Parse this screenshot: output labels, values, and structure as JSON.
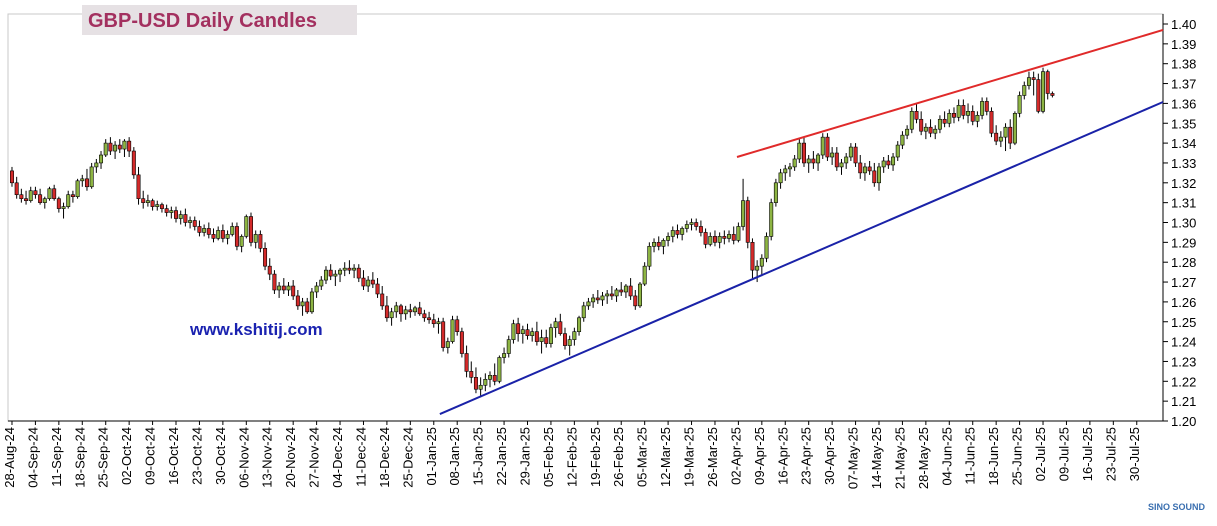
{
  "chart_data": {
    "type": "candlestick",
    "title": "GBP-USD Daily Candles",
    "annotation": "www.kshitij.com",
    "watermark": "SINO SOUND",
    "up_color": "#8db443",
    "down_color": "#d42a2a",
    "categories": [
      "28-Aug-24",
      "04-Sep-24",
      "11-Sep-24",
      "18-Sep-24",
      "25-Sep-24",
      "02-Oct-24",
      "09-Oct-24",
      "16-Oct-24",
      "23-Oct-24",
      "30-Oct-24",
      "06-Nov-24",
      "13-Nov-24",
      "20-Nov-24",
      "27-Nov-24",
      "04-Dec-24",
      "11-Dec-24",
      "18-Dec-24",
      "25-Dec-24",
      "01-Jan-25",
      "08-Jan-25",
      "15-Jan-25",
      "22-Jan-25",
      "29-Jan-25",
      "05-Feb-25",
      "12-Feb-25",
      "19-Feb-25",
      "26-Feb-25",
      "05-Mar-25",
      "12-Mar-25",
      "19-Mar-25",
      "26-Mar-25",
      "02-Apr-25",
      "09-Apr-25",
      "16-Apr-25",
      "23-Apr-25",
      "30-Apr-25",
      "07-May-25",
      "14-May-25",
      "21-May-25",
      "28-May-25",
      "04-Jun-25",
      "11-Jun-25",
      "18-Jun-25",
      "25-Jun-25",
      "02-Jul-25",
      "09-Jul-25",
      "16-Jul-25",
      "23-Jul-25",
      "30-Jul-25"
    ],
    "ohlc": [
      [
        1.326,
        1.328,
        1.318,
        1.32
      ],
      [
        1.32,
        1.323,
        1.312,
        1.314
      ],
      [
        1.314,
        1.317,
        1.31,
        1.312
      ],
      [
        1.312,
        1.316,
        1.309,
        1.311
      ],
      [
        1.311,
        1.318,
        1.31,
        1.316
      ],
      [
        1.316,
        1.318,
        1.312,
        1.314
      ],
      [
        1.314,
        1.317,
        1.309,
        1.31
      ],
      [
        1.31,
        1.313,
        1.307,
        1.312
      ],
      [
        1.312,
        1.318,
        1.311,
        1.317
      ],
      [
        1.317,
        1.319,
        1.311,
        1.312
      ],
      [
        1.312,
        1.313,
        1.305,
        1.307
      ],
      [
        1.307,
        1.31,
        1.302,
        1.308
      ],
      [
        1.308,
        1.316,
        1.307,
        1.314
      ],
      [
        1.314,
        1.316,
        1.31,
        1.313
      ],
      [
        1.313,
        1.322,
        1.312,
        1.321
      ],
      [
        1.321,
        1.324,
        1.318,
        1.322
      ],
      [
        1.322,
        1.327,
        1.316,
        1.318
      ],
      [
        1.318,
        1.33,
        1.317,
        1.328
      ],
      [
        1.328,
        1.332,
        1.325,
        1.33
      ],
      [
        1.33,
        1.336,
        1.327,
        1.334
      ],
      [
        1.334,
        1.342,
        1.333,
        1.34
      ],
      [
        1.34,
        1.343,
        1.334,
        1.336
      ],
      [
        1.336,
        1.341,
        1.332,
        1.339
      ],
      [
        1.339,
        1.342,
        1.335,
        1.337
      ],
      [
        1.337,
        1.342,
        1.333,
        1.341
      ],
      [
        1.341,
        1.343,
        1.333,
        1.336
      ],
      [
        1.336,
        1.338,
        1.322,
        1.324
      ],
      [
        1.324,
        1.328,
        1.309,
        1.312
      ],
      [
        1.312,
        1.316,
        1.307,
        1.31
      ],
      [
        1.31,
        1.314,
        1.308,
        1.311
      ],
      [
        1.311,
        1.312,
        1.306,
        1.308
      ],
      [
        1.308,
        1.311,
        1.306,
        1.309
      ],
      [
        1.309,
        1.31,
        1.305,
        1.307
      ],
      [
        1.307,
        1.309,
        1.303,
        1.305
      ],
      [
        1.305,
        1.308,
        1.302,
        1.306
      ],
      [
        1.306,
        1.308,
        1.3,
        1.302
      ],
      [
        1.302,
        1.306,
        1.299,
        1.304
      ],
      [
        1.304,
        1.307,
        1.298,
        1.3
      ],
      [
        1.3,
        1.303,
        1.297,
        1.301
      ],
      [
        1.301,
        1.303,
        1.296,
        1.298
      ],
      [
        1.298,
        1.301,
        1.293,
        1.295
      ],
      [
        1.295,
        1.299,
        1.293,
        1.297
      ],
      [
        1.297,
        1.3,
        1.292,
        1.294
      ],
      [
        1.294,
        1.297,
        1.29,
        1.292
      ],
      [
        1.292,
        1.298,
        1.291,
        1.296
      ],
      [
        1.296,
        1.299,
        1.29,
        1.292
      ],
      [
        1.292,
        1.296,
        1.289,
        1.294
      ],
      [
        1.294,
        1.3,
        1.293,
        1.298
      ],
      [
        1.298,
        1.3,
        1.286,
        1.288
      ],
      [
        1.288,
        1.294,
        1.285,
        1.293
      ],
      [
        1.293,
        1.304,
        1.292,
        1.303
      ],
      [
        1.303,
        1.305,
        1.288,
        1.29
      ],
      [
        1.29,
        1.296,
        1.287,
        1.294
      ],
      [
        1.294,
        1.296,
        1.285,
        1.287
      ],
      [
        1.287,
        1.29,
        1.276,
        1.278
      ],
      [
        1.278,
        1.282,
        1.271,
        1.274
      ],
      [
        1.274,
        1.276,
        1.264,
        1.266
      ],
      [
        1.266,
        1.27,
        1.262,
        1.268
      ],
      [
        1.268,
        1.272,
        1.264,
        1.266
      ],
      [
        1.266,
        1.27,
        1.263,
        1.268
      ],
      [
        1.268,
        1.271,
        1.261,
        1.263
      ],
      [
        1.263,
        1.266,
        1.256,
        1.258
      ],
      [
        1.258,
        1.262,
        1.253,
        1.26
      ],
      [
        1.26,
        1.262,
        1.254,
        1.255
      ],
      [
        1.255,
        1.267,
        1.254,
        1.265
      ],
      [
        1.265,
        1.27,
        1.262,
        1.268
      ],
      [
        1.268,
        1.273,
        1.266,
        1.271
      ],
      [
        1.271,
        1.278,
        1.269,
        1.276
      ],
      [
        1.276,
        1.279,
        1.271,
        1.273
      ],
      [
        1.273,
        1.276,
        1.268,
        1.274
      ],
      [
        1.274,
        1.277,
        1.27,
        1.276
      ],
      [
        1.276,
        1.28,
        1.273,
        1.277
      ],
      [
        1.277,
        1.281,
        1.274,
        1.276
      ],
      [
        1.276,
        1.279,
        1.272,
        1.277
      ],
      [
        1.277,
        1.279,
        1.27,
        1.272
      ],
      [
        1.272,
        1.276,
        1.266,
        1.268
      ],
      [
        1.268,
        1.273,
        1.265,
        1.271
      ],
      [
        1.271,
        1.275,
        1.267,
        1.269
      ],
      [
        1.269,
        1.272,
        1.262,
        1.264
      ],
      [
        1.264,
        1.268,
        1.256,
        1.258
      ],
      [
        1.258,
        1.263,
        1.25,
        1.252
      ],
      [
        1.252,
        1.257,
        1.248,
        1.255
      ],
      [
        1.255,
        1.26,
        1.252,
        1.258
      ],
      [
        1.258,
        1.259,
        1.25,
        1.254
      ],
      [
        1.254,
        1.258,
        1.251,
        1.256
      ],
      [
        1.256,
        1.259,
        1.252,
        1.255
      ],
      [
        1.255,
        1.258,
        1.253,
        1.257
      ],
      [
        1.257,
        1.26,
        1.253,
        1.254
      ],
      [
        1.254,
        1.256,
        1.25,
        1.252
      ],
      [
        1.252,
        1.255,
        1.249,
        1.251
      ],
      [
        1.251,
        1.254,
        1.247,
        1.249
      ],
      [
        1.249,
        1.252,
        1.244,
        1.25
      ],
      [
        1.25,
        1.252,
        1.235,
        1.237
      ],
      [
        1.237,
        1.242,
        1.234,
        1.24
      ],
      [
        1.24,
        1.253,
        1.239,
        1.251
      ],
      [
        1.251,
        1.253,
        1.243,
        1.245
      ],
      [
        1.245,
        1.247,
        1.232,
        1.234
      ],
      [
        1.234,
        1.238,
        1.222,
        1.225
      ],
      [
        1.225,
        1.23,
        1.219,
        1.222
      ],
      [
        1.222,
        1.227,
        1.214,
        1.216
      ],
      [
        1.216,
        1.222,
        1.212,
        1.218
      ],
      [
        1.218,
        1.224,
        1.215,
        1.221
      ],
      [
        1.221,
        1.225,
        1.217,
        1.223
      ],
      [
        1.223,
        1.229,
        1.218,
        1.22
      ],
      [
        1.22,
        1.233,
        1.219,
        1.232
      ],
      [
        1.232,
        1.237,
        1.229,
        1.234
      ],
      [
        1.234,
        1.243,
        1.232,
        1.241
      ],
      [
        1.241,
        1.251,
        1.239,
        1.249
      ],
      [
        1.249,
        1.252,
        1.24,
        1.244
      ],
      [
        1.244,
        1.248,
        1.239,
        1.246
      ],
      [
        1.246,
        1.249,
        1.241,
        1.243
      ],
      [
        1.243,
        1.247,
        1.24,
        1.245
      ],
      [
        1.245,
        1.25,
        1.238,
        1.24
      ],
      [
        1.24,
        1.246,
        1.234,
        1.242
      ],
      [
        1.242,
        1.246,
        1.237,
        1.239
      ],
      [
        1.239,
        1.249,
        1.237,
        1.247
      ],
      [
        1.247,
        1.252,
        1.242,
        1.25
      ],
      [
        1.25,
        1.254,
        1.243,
        1.244
      ],
      [
        1.244,
        1.247,
        1.236,
        1.238
      ],
      [
        1.238,
        1.243,
        1.233,
        1.241
      ],
      [
        1.241,
        1.247,
        1.238,
        1.245
      ],
      [
        1.245,
        1.253,
        1.243,
        1.252
      ],
      [
        1.252,
        1.26,
        1.25,
        1.258
      ],
      [
        1.258,
        1.262,
        1.256,
        1.26
      ],
      [
        1.26,
        1.264,
        1.257,
        1.262
      ],
      [
        1.262,
        1.266,
        1.259,
        1.261
      ],
      [
        1.261,
        1.265,
        1.258,
        1.263
      ],
      [
        1.263,
        1.266,
        1.259,
        1.264
      ],
      [
        1.264,
        1.268,
        1.261,
        1.263
      ],
      [
        1.263,
        1.267,
        1.26,
        1.266
      ],
      [
        1.266,
        1.27,
        1.263,
        1.265
      ],
      [
        1.265,
        1.269,
        1.262,
        1.268
      ],
      [
        1.268,
        1.272,
        1.261,
        1.263
      ],
      [
        1.263,
        1.266,
        1.256,
        1.258
      ],
      [
        1.258,
        1.27,
        1.257,
        1.269
      ],
      [
        1.269,
        1.28,
        1.268,
        1.278
      ],
      [
        1.278,
        1.29,
        1.276,
        1.288
      ],
      [
        1.288,
        1.292,
        1.285,
        1.29
      ],
      [
        1.29,
        1.293,
        1.286,
        1.288
      ],
      [
        1.288,
        1.292,
        1.284,
        1.291
      ],
      [
        1.291,
        1.295,
        1.288,
        1.293
      ],
      [
        1.293,
        1.298,
        1.29,
        1.296
      ],
      [
        1.296,
        1.299,
        1.292,
        1.294
      ],
      [
        1.294,
        1.298,
        1.291,
        1.297
      ],
      [
        1.297,
        1.301,
        1.295,
        1.299
      ],
      [
        1.299,
        1.302,
        1.296,
        1.3
      ],
      [
        1.3,
        1.302,
        1.296,
        1.298
      ],
      [
        1.298,
        1.301,
        1.293,
        1.295
      ],
      [
        1.295,
        1.297,
        1.287,
        1.289
      ],
      [
        1.289,
        1.295,
        1.288,
        1.293
      ],
      [
        1.293,
        1.296,
        1.288,
        1.29
      ],
      [
        1.29,
        1.295,
        1.287,
        1.293
      ],
      [
        1.293,
        1.296,
        1.289,
        1.292
      ],
      [
        1.292,
        1.296,
        1.29,
        1.294
      ],
      [
        1.294,
        1.298,
        1.289,
        1.291
      ],
      [
        1.291,
        1.3,
        1.29,
        1.298
      ],
      [
        1.298,
        1.322,
        1.296,
        1.311
      ],
      [
        1.311,
        1.313,
        1.287,
        1.29
      ],
      [
        1.29,
        1.292,
        1.272,
        1.276
      ],
      [
        1.276,
        1.281,
        1.27,
        1.278
      ],
      [
        1.278,
        1.284,
        1.273,
        1.282
      ],
      [
        1.282,
        1.295,
        1.28,
        1.293
      ],
      [
        1.293,
        1.312,
        1.291,
        1.31
      ],
      [
        1.31,
        1.322,
        1.308,
        1.32
      ],
      [
        1.32,
        1.327,
        1.317,
        1.325
      ],
      [
        1.325,
        1.329,
        1.321,
        1.327
      ],
      [
        1.327,
        1.33,
        1.323,
        1.328
      ],
      [
        1.328,
        1.334,
        1.326,
        1.332
      ],
      [
        1.332,
        1.342,
        1.33,
        1.34
      ],
      [
        1.34,
        1.343,
        1.328,
        1.33
      ],
      [
        1.33,
        1.334,
        1.325,
        1.332
      ],
      [
        1.332,
        1.336,
        1.327,
        1.33
      ],
      [
        1.33,
        1.335,
        1.326,
        1.334
      ],
      [
        1.334,
        1.345,
        1.332,
        1.343
      ],
      [
        1.343,
        1.345,
        1.331,
        1.333
      ],
      [
        1.333,
        1.338,
        1.329,
        1.335
      ],
      [
        1.335,
        1.338,
        1.326,
        1.328
      ],
      [
        1.328,
        1.332,
        1.324,
        1.33
      ],
      [
        1.33,
        1.335,
        1.327,
        1.333
      ],
      [
        1.333,
        1.34,
        1.331,
        1.338
      ],
      [
        1.338,
        1.34,
        1.328,
        1.33
      ],
      [
        1.33,
        1.334,
        1.322,
        1.325
      ],
      [
        1.325,
        1.33,
        1.321,
        1.328
      ],
      [
        1.328,
        1.331,
        1.324,
        1.326
      ],
      [
        1.326,
        1.33,
        1.318,
        1.32
      ],
      [
        1.32,
        1.33,
        1.316,
        1.328
      ],
      [
        1.328,
        1.333,
        1.325,
        1.331
      ],
      [
        1.331,
        1.334,
        1.327,
        1.329
      ],
      [
        1.329,
        1.335,
        1.326,
        1.333
      ],
      [
        1.333,
        1.341,
        1.331,
        1.339
      ],
      [
        1.339,
        1.346,
        1.337,
        1.344
      ],
      [
        1.344,
        1.349,
        1.342,
        1.347
      ],
      [
        1.347,
        1.358,
        1.345,
        1.356
      ],
      [
        1.356,
        1.36,
        1.35,
        1.352
      ],
      [
        1.352,
        1.356,
        1.344,
        1.346
      ],
      [
        1.346,
        1.35,
        1.342,
        1.348
      ],
      [
        1.348,
        1.352,
        1.343,
        1.345
      ],
      [
        1.345,
        1.349,
        1.342,
        1.347
      ],
      [
        1.347,
        1.354,
        1.345,
        1.352
      ],
      [
        1.352,
        1.356,
        1.348,
        1.35
      ],
      [
        1.35,
        1.357,
        1.348,
        1.355
      ],
      [
        1.355,
        1.358,
        1.35,
        1.353
      ],
      [
        1.353,
        1.362,
        1.351,
        1.359
      ],
      [
        1.359,
        1.362,
        1.352,
        1.354
      ],
      [
        1.354,
        1.36,
        1.35,
        1.356
      ],
      [
        1.356,
        1.359,
        1.349,
        1.351
      ],
      [
        1.351,
        1.356,
        1.348,
        1.354
      ],
      [
        1.354,
        1.363,
        1.352,
        1.361
      ],
      [
        1.361,
        1.363,
        1.354,
        1.356
      ],
      [
        1.356,
        1.358,
        1.343,
        1.345
      ],
      [
        1.345,
        1.349,
        1.339,
        1.341
      ],
      [
        1.341,
        1.346,
        1.338,
        1.343
      ],
      [
        1.343,
        1.35,
        1.336,
        1.348
      ],
      [
        1.348,
        1.352,
        1.337,
        1.34
      ],
      [
        1.34,
        1.356,
        1.339,
        1.355
      ],
      [
        1.355,
        1.366,
        1.353,
        1.364
      ],
      [
        1.364,
        1.371,
        1.362,
        1.369
      ],
      [
        1.369,
        1.376,
        1.367,
        1.373
      ],
      [
        1.373,
        1.376,
        1.364,
        1.372
      ],
      [
        1.372,
        1.375,
        1.355,
        1.356
      ],
      [
        1.356,
        1.378,
        1.355,
        1.376
      ],
      [
        1.376,
        1.377,
        1.362,
        1.365
      ],
      [
        1.365,
        1.366,
        1.363,
        1.364
      ]
    ],
    "trendlines": [
      {
        "color": "#e02a2a",
        "points": [
          [
            154.7,
            1.333
          ],
          [
            245.6,
            1.397
          ]
        ]
      },
      {
        "color": "#1a22a8",
        "points": [
          [
            91.3,
            1.2035
          ],
          [
            245.6,
            1.3607
          ]
        ]
      }
    ],
    "xlim": [
      -0.85,
      245.6
    ],
    "ylim": [
      1.2,
      1.4
    ],
    "yticks": [
      {
        "value": 1.2,
        "label": "1.20"
      },
      {
        "value": 1.21,
        "label": "1.21"
      },
      {
        "value": 1.22,
        "label": "1.22"
      },
      {
        "value": 1.23,
        "label": "1.23"
      },
      {
        "value": 1.24,
        "label": "1.24"
      },
      {
        "value": 1.25,
        "label": "1.25"
      },
      {
        "value": 1.26,
        "label": "1.26"
      },
      {
        "value": 1.27,
        "label": "1.27"
      },
      {
        "value": 1.28,
        "label": "1.28"
      },
      {
        "value": 1.29,
        "label": "1.29"
      },
      {
        "value": 1.3,
        "label": "1.30"
      },
      {
        "value": 1.31,
        "label": "1.31"
      },
      {
        "value": 1.32,
        "label": "1.32"
      },
      {
        "value": 1.33,
        "label": "1.33"
      },
      {
        "value": 1.34,
        "label": "1.34"
      },
      {
        "value": 1.35,
        "label": "1.35"
      },
      {
        "value": 1.36,
        "label": "1.36"
      },
      {
        "value": 1.37,
        "label": "1.37"
      },
      {
        "value": 1.38,
        "label": "1.38"
      },
      {
        "value": 1.39,
        "label": "1.39"
      },
      {
        "value": 1.4,
        "label": "1.40"
      }
    ],
    "y_axis_side": "right"
  }
}
